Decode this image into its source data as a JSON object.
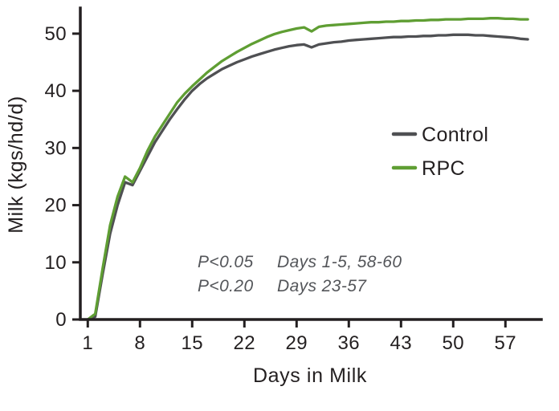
{
  "chart_data": {
    "type": "line",
    "title": "",
    "xlabel": "Days in Milk",
    "ylabel": "Milk (kgs/hd/d)",
    "xlim": [
      0,
      61.6
    ],
    "ylim": [
      0,
      54.2
    ],
    "xticks": [
      1,
      8,
      15,
      22,
      29,
      36,
      43,
      50,
      57
    ],
    "yticks": [
      0,
      10,
      20,
      30,
      40,
      50
    ],
    "grid": false,
    "legend_position": "right-middle",
    "x": [
      1,
      2,
      3,
      4,
      5,
      6,
      7,
      8,
      9,
      10,
      11,
      12,
      13,
      14,
      15,
      16,
      17,
      18,
      19,
      20,
      21,
      22,
      23,
      24,
      25,
      26,
      27,
      28,
      29,
      30,
      31,
      32,
      33,
      34,
      35,
      36,
      37,
      38,
      39,
      40,
      41,
      42,
      43,
      44,
      45,
      46,
      47,
      48,
      49,
      50,
      51,
      52,
      53,
      54,
      55,
      56,
      57,
      58,
      59,
      60
    ],
    "series": [
      {
        "name": "Control",
        "color": "#4f5053",
        "values": [
          0,
          0.5,
          8,
          15,
          20,
          24,
          23.5,
          26,
          28.5,
          31,
          33,
          35,
          36.8,
          38.5,
          40,
          41.2,
          42.2,
          43,
          43.8,
          44.4,
          45,
          45.5,
          46,
          46.4,
          46.8,
          47.2,
          47.5,
          47.8,
          48,
          48.1,
          47.6,
          48.1,
          48.3,
          48.5,
          48.6,
          48.8,
          48.9,
          49,
          49.1,
          49.2,
          49.3,
          49.4,
          49.4,
          49.5,
          49.5,
          49.6,
          49.6,
          49.7,
          49.7,
          49.8,
          49.8,
          49.8,
          49.7,
          49.7,
          49.6,
          49.5,
          49.4,
          49.3,
          49.1,
          49
        ]
      },
      {
        "name": "RPC",
        "color": "#5f9e33",
        "values": [
          0,
          1,
          9,
          16.5,
          21.5,
          25,
          24,
          26.5,
          29.5,
          32,
          34,
          36,
          38,
          39.5,
          40.8,
          42,
          43.2,
          44.2,
          45.2,
          46,
          46.8,
          47.5,
          48.2,
          48.8,
          49.4,
          49.9,
          50.3,
          50.6,
          50.9,
          51.1,
          50.4,
          51.2,
          51.4,
          51.5,
          51.6,
          51.7,
          51.8,
          51.9,
          52,
          52,
          52.1,
          52.1,
          52.2,
          52.2,
          52.3,
          52.3,
          52.4,
          52.4,
          52.5,
          52.5,
          52.5,
          52.6,
          52.6,
          52.6,
          52.7,
          52.7,
          52.6,
          52.6,
          52.5,
          52.5
        ]
      }
    ],
    "annotations": [
      {
        "p": "P<0.05",
        "days": "Days 1-5, 58-60"
      },
      {
        "p": "P<0.20",
        "days": "Days 23-57"
      }
    ]
  },
  "colors": {
    "axis": "#231f20",
    "annotation": "#54565a",
    "background": "#ffffff"
  }
}
